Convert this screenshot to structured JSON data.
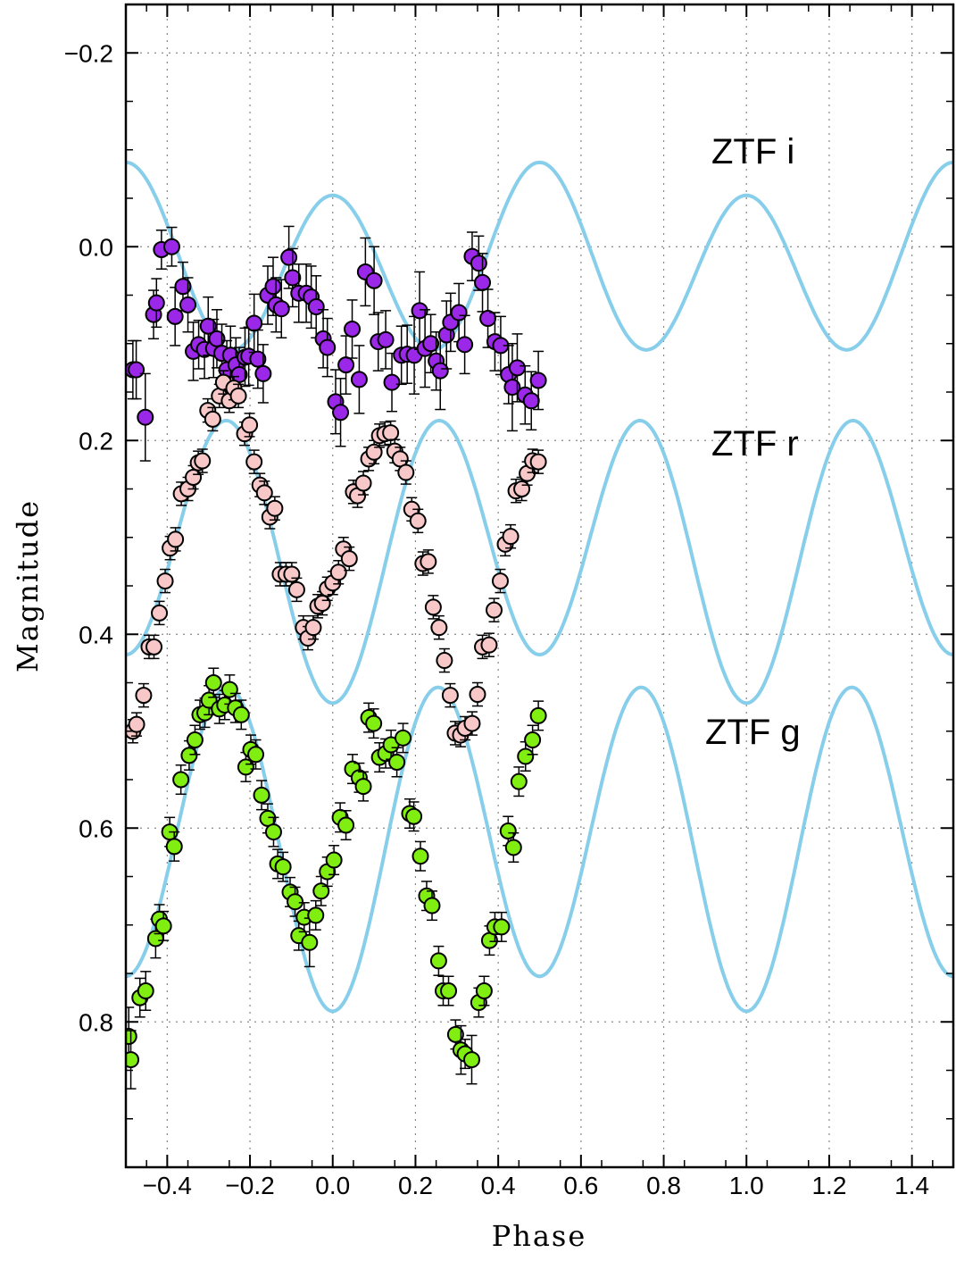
{
  "chart_data": {
    "type": "scatter",
    "xlabel": "Phase",
    "ylabel": "Magnitude",
    "xlim": [
      -0.5,
      1.5
    ],
    "ylim": [
      -0.25,
      0.95
    ],
    "y_inverted": true,
    "grid": true,
    "grid_style": "dotted",
    "x_ticks": [
      -0.4,
      -0.2,
      0.0,
      0.2,
      0.4,
      0.6,
      0.8,
      1.0,
      1.2,
      1.4
    ],
    "x_tick_labels": [
      "−0.4",
      "−0.2",
      "0.0",
      "0.2",
      "0.4",
      "0.6",
      "0.8",
      "1.0",
      "1.2",
      "1.4"
    ],
    "y_ticks": [
      -0.2,
      0.0,
      0.2,
      0.4,
      0.6,
      0.8
    ],
    "y_tick_labels": [
      "−0.2",
      "0.0",
      "0.2",
      "0.4",
      "0.6",
      "0.8"
    ],
    "model_color": "#87CEEB",
    "series": [
      {
        "name": "ZTF i",
        "color": "#9B27E8",
        "model": {
          "mean": 0.018,
          "amp_main": -0.088,
          "amp_second": 0.017
        },
        "x": [
          -0.483,
          -0.475,
          -0.453,
          -0.433,
          -0.426,
          -0.414,
          -0.389,
          -0.381,
          -0.362,
          -0.35,
          -0.337,
          -0.324,
          -0.31,
          -0.301,
          -0.288,
          -0.28,
          -0.268,
          -0.256,
          -0.247,
          -0.234,
          -0.226,
          -0.212,
          -0.203,
          -0.19,
          -0.181,
          -0.168,
          -0.157,
          -0.144,
          -0.137,
          -0.124,
          -0.106,
          -0.097,
          -0.082,
          -0.064,
          -0.052,
          -0.04,
          -0.023,
          -0.013,
          0.007,
          0.019,
          0.032,
          0.047,
          0.064,
          0.079,
          0.1,
          0.11,
          0.128,
          0.143,
          0.166,
          0.18,
          0.197,
          0.21,
          0.223,
          0.237,
          0.25,
          0.26,
          0.275,
          0.285,
          0.305,
          0.319,
          0.337,
          0.353,
          0.362,
          0.375,
          0.392,
          0.406,
          0.425,
          0.434,
          0.446,
          0.465,
          0.48,
          0.497
        ],
        "y": [
          0.127,
          0.127,
          0.176,
          0.07,
          0.058,
          0.003,
          0.0,
          0.072,
          0.041,
          0.06,
          0.108,
          0.101,
          0.106,
          0.082,
          0.105,
          0.095,
          0.11,
          0.127,
          0.112,
          0.122,
          0.132,
          0.114,
          0.113,
          0.079,
          0.116,
          0.131,
          0.05,
          0.041,
          0.06,
          0.064,
          0.011,
          0.032,
          0.048,
          0.048,
          0.052,
          0.062,
          0.095,
          0.104,
          0.16,
          0.171,
          0.122,
          0.085,
          0.137,
          0.026,
          0.035,
          0.098,
          0.096,
          0.14,
          0.112,
          0.111,
          0.112,
          0.066,
          0.105,
          0.1,
          0.118,
          0.128,
          0.091,
          0.078,
          0.068,
          0.101,
          0.01,
          0.017,
          0.037,
          0.074,
          0.098,
          0.102,
          0.132,
          0.145,
          0.125,
          0.153,
          0.159,
          0.138
        ],
        "err": [
          0.03,
          0.03,
          0.045,
          0.025,
          0.025,
          0.02,
          0.02,
          0.03,
          0.025,
          0.028,
          0.03,
          0.025,
          0.03,
          0.03,
          0.03,
          0.03,
          0.03,
          0.03,
          0.03,
          0.028,
          0.028,
          0.03,
          0.03,
          0.03,
          0.03,
          0.03,
          0.03,
          0.03,
          0.028,
          0.03,
          0.032,
          0.03,
          0.03,
          0.03,
          0.032,
          0.032,
          0.03,
          0.03,
          0.033,
          0.035,
          0.03,
          0.03,
          0.035,
          0.035,
          0.035,
          0.03,
          0.03,
          0.03,
          0.03,
          0.03,
          0.04,
          0.04,
          0.04,
          0.03,
          0.03,
          0.04,
          0.035,
          0.03,
          0.03,
          0.03,
          0.025,
          0.028,
          0.03,
          0.03,
          0.03,
          0.03,
          0.03,
          0.045,
          0.035,
          0.03,
          0.03,
          0.03
        ]
      },
      {
        "name": "ZTF r",
        "color": "#F8C8C8",
        "model": {
          "mean": 0.313,
          "amp_main": 0.133,
          "amp_second": 0.025
        },
        "x": [
          -0.483,
          -0.474,
          -0.457,
          -0.444,
          -0.432,
          -0.419,
          -0.405,
          -0.393,
          -0.38,
          -0.366,
          -0.35,
          -0.337,
          -0.325,
          -0.315,
          -0.302,
          -0.29,
          -0.274,
          -0.264,
          -0.25,
          -0.239,
          -0.228,
          -0.213,
          -0.201,
          -0.19,
          -0.176,
          -0.165,
          -0.152,
          -0.14,
          -0.127,
          -0.113,
          -0.099,
          -0.087,
          -0.071,
          -0.06,
          -0.047,
          -0.036,
          -0.025,
          -0.013,
          0.0,
          0.014,
          0.026,
          0.04,
          0.05,
          0.06,
          0.074,
          0.087,
          0.1,
          0.113,
          0.126,
          0.14,
          0.15,
          0.163,
          0.177,
          0.191,
          0.206,
          0.218,
          0.231,
          0.243,
          0.257,
          0.27,
          0.284,
          0.296,
          0.309,
          0.32,
          0.337,
          0.35,
          0.362,
          0.378,
          0.39,
          0.405,
          0.417,
          0.43,
          0.443,
          0.457,
          0.47,
          0.483,
          0.497
        ],
        "y": [
          0.5,
          0.493,
          0.463,
          0.413,
          0.413,
          0.378,
          0.345,
          0.311,
          0.302,
          0.255,
          0.25,
          0.238,
          0.223,
          0.221,
          0.169,
          0.178,
          0.154,
          0.14,
          0.159,
          0.146,
          0.154,
          0.193,
          0.184,
          0.222,
          0.246,
          0.254,
          0.279,
          0.27,
          0.338,
          0.338,
          0.338,
          0.354,
          0.393,
          0.404,
          0.393,
          0.371,
          0.368,
          0.353,
          0.347,
          0.336,
          0.312,
          0.322,
          0.253,
          0.257,
          0.244,
          0.219,
          0.212,
          0.195,
          0.193,
          0.192,
          0.211,
          0.219,
          0.233,
          0.271,
          0.283,
          0.327,
          0.325,
          0.372,
          0.393,
          0.427,
          0.463,
          0.502,
          0.504,
          0.497,
          0.492,
          0.462,
          0.413,
          0.411,
          0.375,
          0.345,
          0.307,
          0.299,
          0.252,
          0.25,
          0.234,
          0.221,
          0.222
        ],
        "err": [
          0.012,
          0.012,
          0.012,
          0.012,
          0.012,
          0.012,
          0.012,
          0.012,
          0.012,
          0.012,
          0.012,
          0.012,
          0.012,
          0.012,
          0.012,
          0.012,
          0.012,
          0.012,
          0.012,
          0.012,
          0.012,
          0.012,
          0.012,
          0.012,
          0.012,
          0.012,
          0.012,
          0.012,
          0.012,
          0.012,
          0.012,
          0.012,
          0.012,
          0.012,
          0.012,
          0.012,
          0.012,
          0.012,
          0.012,
          0.012,
          0.012,
          0.012,
          0.012,
          0.012,
          0.012,
          0.012,
          0.012,
          0.012,
          0.012,
          0.012,
          0.012,
          0.012,
          0.012,
          0.012,
          0.012,
          0.012,
          0.012,
          0.012,
          0.012,
          0.012,
          0.012,
          0.012,
          0.012,
          0.012,
          0.012,
          0.012,
          0.012,
          0.012,
          0.012,
          0.012,
          0.012,
          0.012,
          0.012,
          0.012,
          0.012,
          0.012,
          0.012
        ]
      },
      {
        "name": "ZTF g",
        "color": "#80EE10",
        "model": {
          "mean": 0.613,
          "amp_main": 0.158,
          "amp_second": 0.018
        },
        "x": [
          -0.493,
          -0.488,
          -0.466,
          -0.452,
          -0.428,
          -0.419,
          -0.409,
          -0.394,
          -0.383,
          -0.367,
          -0.347,
          -0.333,
          -0.321,
          -0.309,
          -0.299,
          -0.288,
          -0.274,
          -0.261,
          -0.249,
          -0.235,
          -0.221,
          -0.21,
          -0.198,
          -0.186,
          -0.172,
          -0.157,
          -0.143,
          -0.133,
          -0.12,
          -0.103,
          -0.091,
          -0.082,
          -0.069,
          -0.056,
          -0.041,
          -0.028,
          -0.013,
          0.003,
          0.018,
          0.032,
          0.048,
          0.064,
          0.074,
          0.087,
          0.099,
          0.113,
          0.128,
          0.141,
          0.155,
          0.17,
          0.186,
          0.196,
          0.212,
          0.227,
          0.24,
          0.256,
          0.267,
          0.28,
          0.297,
          0.31,
          0.32,
          0.336,
          0.353,
          0.366,
          0.379,
          0.392,
          0.408,
          0.424,
          0.437,
          0.45,
          0.466,
          0.483,
          0.497
        ],
        "y": [
          0.815,
          0.839,
          0.775,
          0.768,
          0.714,
          0.694,
          0.701,
          0.604,
          0.619,
          0.55,
          0.525,
          0.509,
          0.483,
          0.481,
          0.468,
          0.45,
          0.477,
          0.473,
          0.457,
          0.476,
          0.483,
          0.537,
          0.519,
          0.524,
          0.566,
          0.59,
          0.604,
          0.637,
          0.64,
          0.666,
          0.676,
          0.711,
          0.692,
          0.718,
          0.69,
          0.665,
          0.645,
          0.633,
          0.589,
          0.597,
          0.539,
          0.548,
          0.557,
          0.486,
          0.492,
          0.527,
          0.523,
          0.514,
          0.532,
          0.507,
          0.585,
          0.588,
          0.629,
          0.67,
          0.68,
          0.737,
          0.768,
          0.768,
          0.813,
          0.829,
          0.833,
          0.839,
          0.78,
          0.768,
          0.716,
          0.702,
          0.702,
          0.603,
          0.62,
          0.552,
          0.526,
          0.509,
          0.484
        ],
        "err": [
          0.03,
          0.03,
          0.02,
          0.02,
          0.02,
          0.015,
          0.015,
          0.015,
          0.015,
          0.015,
          0.015,
          0.015,
          0.015,
          0.015,
          0.015,
          0.015,
          0.015,
          0.015,
          0.015,
          0.015,
          0.015,
          0.015,
          0.015,
          0.015,
          0.015,
          0.015,
          0.015,
          0.015,
          0.015,
          0.015,
          0.015,
          0.015,
          0.015,
          0.025,
          0.015,
          0.015,
          0.015,
          0.015,
          0.015,
          0.015,
          0.015,
          0.015,
          0.015,
          0.015,
          0.015,
          0.015,
          0.015,
          0.015,
          0.015,
          0.015,
          0.015,
          0.015,
          0.015,
          0.015,
          0.015,
          0.015,
          0.015,
          0.015,
          0.015,
          0.025,
          0.015,
          0.025,
          0.015,
          0.015,
          0.015,
          0.015,
          0.015,
          0.015,
          0.015,
          0.015,
          0.015,
          0.015,
          0.015
        ]
      }
    ]
  }
}
